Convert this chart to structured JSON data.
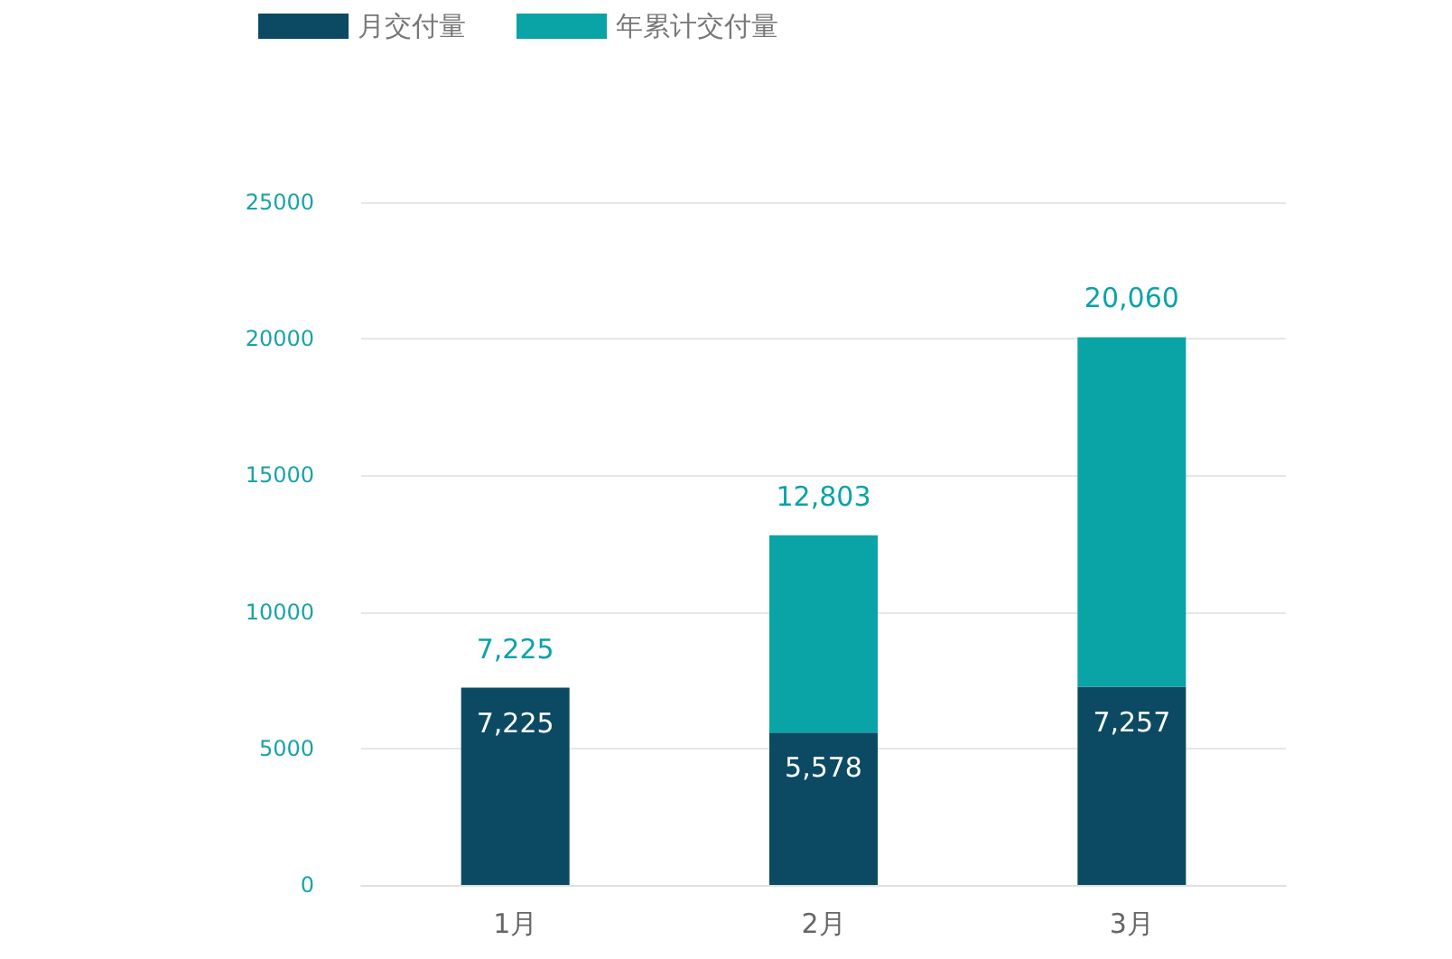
{
  "chart_data": {
    "type": "bar",
    "stacked": true,
    "categories": [
      "1月",
      "2月",
      "3月"
    ],
    "series": [
      {
        "name": "月交付量",
        "color": "#0b4a62",
        "values": [
          7225,
          5578,
          7257
        ],
        "value_labels": [
          "7,225",
          "5,578",
          "7,257"
        ]
      },
      {
        "name": "年累计交付量",
        "color": "#0aa3a6",
        "values": [
          0,
          7225,
          12803
        ]
      }
    ],
    "totals": [
      "7,225",
      "12,803",
      "20,060"
    ],
    "ylim": [
      0,
      25000
    ],
    "yticks": [
      0,
      5000,
      10000,
      15000,
      20000,
      25000
    ],
    "grid": "y",
    "legend": "top left"
  }
}
